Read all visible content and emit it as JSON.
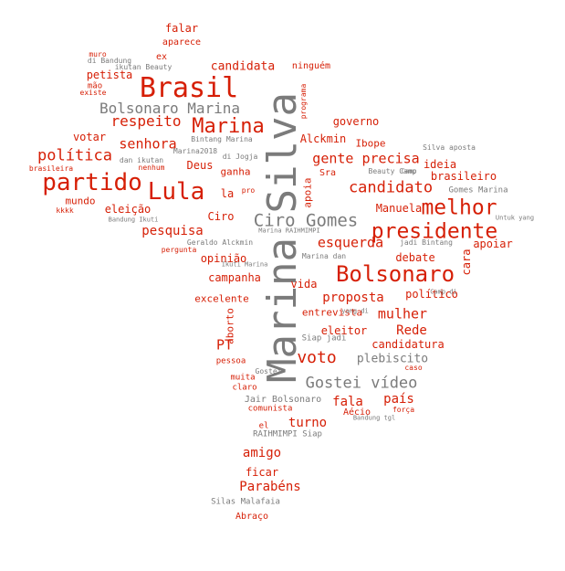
{
  "colors": {
    "red": "#d61f06",
    "gray": "#7b7b7b",
    "background": "#ffffff"
  },
  "words": [
    {
      "t": "Marina Silva",
      "c": "gray"
    },
    {
      "t": "Brasil",
      "c": "red"
    },
    {
      "t": "partido",
      "c": "red"
    },
    {
      "t": "Lula",
      "c": "red"
    },
    {
      "t": "Marina",
      "c": "red"
    },
    {
      "t": "Bolsonaro",
      "c": "red"
    },
    {
      "t": "presidente",
      "c": "red"
    },
    {
      "t": "melhor",
      "c": "red"
    },
    {
      "t": "Ciro Gomes",
      "c": "gray"
    },
    {
      "t": "Bolsonaro Marina",
      "c": "gray"
    },
    {
      "t": "Gostei vídeo",
      "c": "gray"
    },
    {
      "t": "voto",
      "c": "red"
    },
    {
      "t": "candidato",
      "c": "red"
    },
    {
      "t": "política",
      "c": "red"
    },
    {
      "t": "respeito",
      "c": "red"
    },
    {
      "t": "senhora",
      "c": "red"
    },
    {
      "t": "gente precisa",
      "c": "red"
    },
    {
      "t": "esquerda",
      "c": "red"
    },
    {
      "t": "candidata",
      "c": "red"
    },
    {
      "t": "pesquisa",
      "c": "red"
    },
    {
      "t": "mulher",
      "c": "red"
    },
    {
      "t": "proposta",
      "c": "red"
    },
    {
      "t": "Rede",
      "c": "red"
    },
    {
      "t": "PT",
      "c": "red"
    },
    {
      "t": "turno",
      "c": "red"
    },
    {
      "t": "amigo",
      "c": "red"
    },
    {
      "t": "fala",
      "c": "red"
    },
    {
      "t": "país",
      "c": "red"
    },
    {
      "t": "plebiscito",
      "c": "gray"
    },
    {
      "t": "Parabéns",
      "c": "red"
    },
    {
      "t": "falar",
      "c": "red"
    },
    {
      "t": "petista",
      "c": "red"
    },
    {
      "t": "votar",
      "c": "red"
    },
    {
      "t": "eleição",
      "c": "red"
    },
    {
      "t": "Ciro",
      "c": "red"
    },
    {
      "t": "governo",
      "c": "red"
    },
    {
      "t": "Alckmin",
      "c": "red"
    },
    {
      "t": "ideia",
      "c": "red"
    },
    {
      "t": "brasileiro",
      "c": "red"
    },
    {
      "t": "apoiar",
      "c": "red"
    },
    {
      "t": "cara",
      "c": "red"
    },
    {
      "t": "debate",
      "c": "red"
    },
    {
      "t": "político",
      "c": "red"
    },
    {
      "t": "Manuela",
      "c": "red"
    },
    {
      "t": "candidatura",
      "c": "red"
    },
    {
      "t": "eleitor",
      "c": "red"
    },
    {
      "t": "entrevista",
      "c": "red"
    },
    {
      "t": "campanha",
      "c": "red"
    },
    {
      "t": "opinião",
      "c": "red"
    },
    {
      "t": "vida",
      "c": "red"
    },
    {
      "t": "excelente",
      "c": "red"
    },
    {
      "t": "Deus",
      "c": "red"
    },
    {
      "t": "ganha",
      "c": "red"
    },
    {
      "t": "la",
      "c": "red"
    },
    {
      "t": "mundo",
      "c": "red"
    },
    {
      "t": "aborto",
      "c": "red"
    },
    {
      "t": "apoia",
      "c": "red"
    },
    {
      "t": "ficar",
      "c": "red"
    },
    {
      "t": "Abraço",
      "c": "red"
    },
    {
      "t": "ninguém",
      "c": "red"
    },
    {
      "t": "aparece",
      "c": "red"
    },
    {
      "t": "ex",
      "c": "red"
    },
    {
      "t": "mão",
      "c": "red"
    },
    {
      "t": "existe",
      "c": "red"
    },
    {
      "t": "Ibope",
      "c": "red"
    },
    {
      "t": "Sra",
      "c": "red"
    },
    {
      "t": "muita",
      "c": "red"
    },
    {
      "t": "claro",
      "c": "red"
    },
    {
      "t": "pessoa",
      "c": "red"
    },
    {
      "t": "comunista",
      "c": "red"
    },
    {
      "t": "Aécio",
      "c": "red"
    },
    {
      "t": "el",
      "c": "red"
    },
    {
      "t": "kkkk",
      "c": "red"
    },
    {
      "t": "brasileira",
      "c": "red"
    },
    {
      "t": "nenhum",
      "c": "red"
    },
    {
      "t": "pergunta",
      "c": "red"
    },
    {
      "t": "caso",
      "c": "red"
    },
    {
      "t": "força",
      "c": "red"
    },
    {
      "t": "muro",
      "c": "red"
    },
    {
      "t": "pro",
      "c": "red"
    },
    {
      "t": "Jair Bolsonaro",
      "c": "gray"
    },
    {
      "t": "Silas Malafaia",
      "c": "gray"
    },
    {
      "t": "RAIHMIMPI Siap",
      "c": "gray"
    },
    {
      "t": "Siap jadi",
      "c": "gray"
    },
    {
      "t": "Gomes Marina",
      "c": "gray"
    },
    {
      "t": "Silva aposta",
      "c": "gray"
    },
    {
      "t": "Marina dan",
      "c": "gray"
    },
    {
      "t": "Geraldo Alckmin",
      "c": "gray"
    },
    {
      "t": "jadi Bintang",
      "c": "gray"
    },
    {
      "t": "Bintang Marina",
      "c": "gray"
    },
    {
      "t": "Marina2018",
      "c": "gray"
    },
    {
      "t": "dan ikutan",
      "c": "gray"
    },
    {
      "t": "di Jogja",
      "c": "gray"
    },
    {
      "t": "Beauty Camp",
      "c": "gray"
    },
    {
      "t": "ikutan Beauty",
      "c": "gray"
    },
    {
      "t": "di Bandung",
      "c": "gray"
    },
    {
      "t": "Bandung Ikuti",
      "c": "gray"
    },
    {
      "t": "Untuk yang",
      "c": "gray"
    },
    {
      "t": "Marina RAIHMIMPI",
      "c": "gray"
    },
    {
      "t": "Ikuti Marina",
      "c": "gray"
    },
    {
      "t": "yang di",
      "c": "gray"
    },
    {
      "t": "Camp di",
      "c": "gray"
    },
    {
      "t": "Bandung tgl",
      "c": "gray"
    },
    {
      "t": "Camp",
      "c": "gray"
    },
    {
      "t": "programa",
      "c": "red"
    },
    {
      "t": "Gostei",
      "c": "gray"
    }
  ]
}
